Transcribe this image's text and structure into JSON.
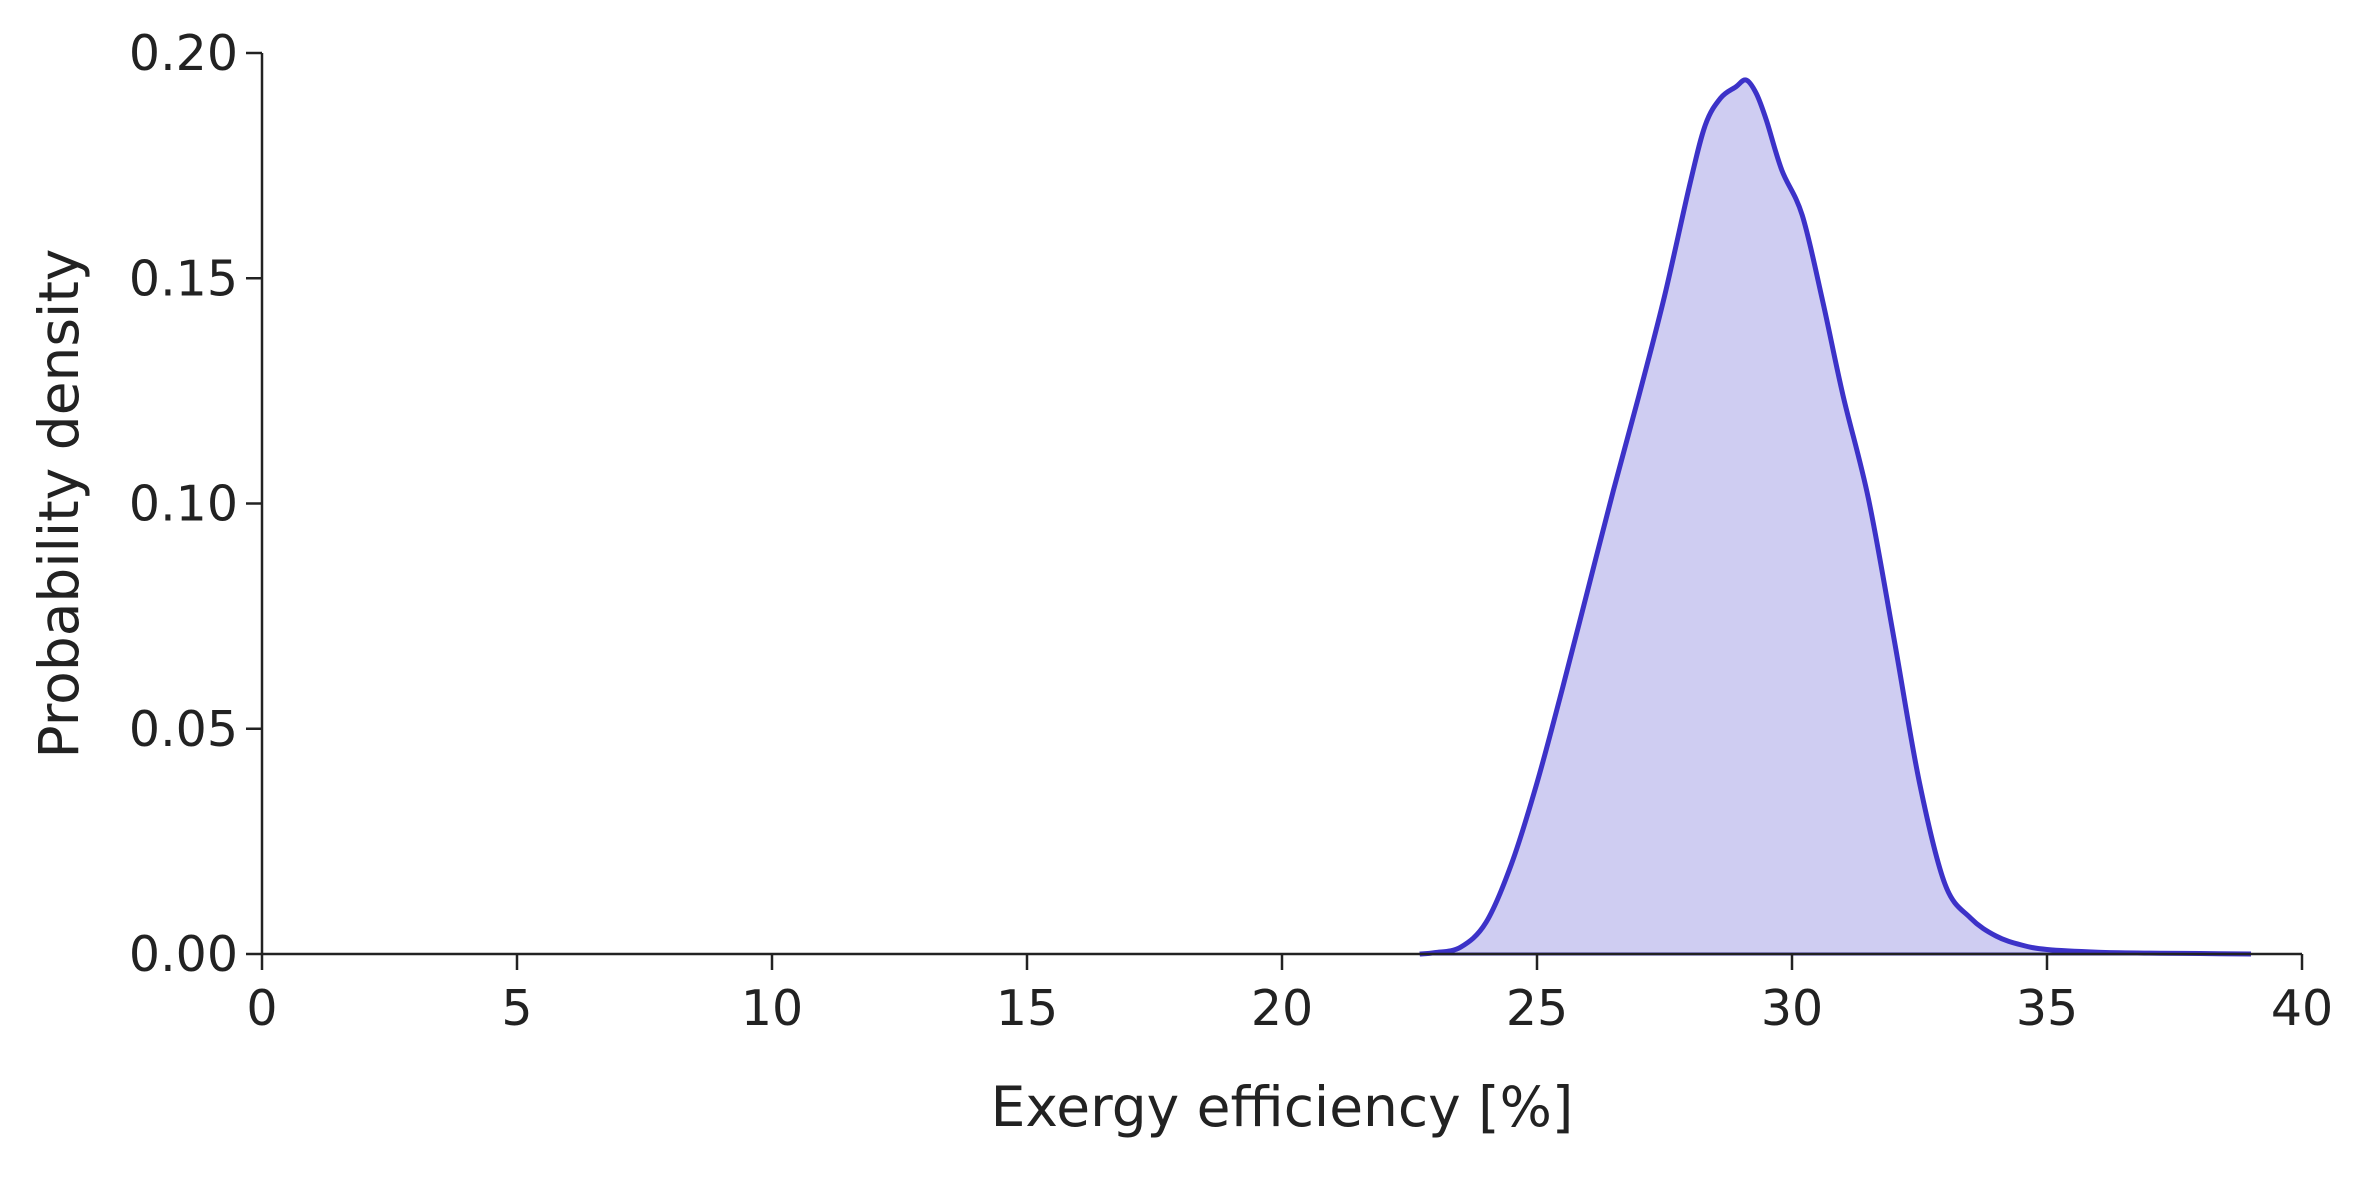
{
  "chart_data": {
    "type": "area",
    "title": "",
    "xlabel": "Exergy efficiency [%]",
    "ylabel": "Probability density",
    "xlim": [
      0,
      40
    ],
    "ylim": [
      0,
      0.2
    ],
    "xticks": [
      0,
      5,
      10,
      15,
      20,
      25,
      30,
      35,
      40
    ],
    "xtick_labels": [
      "0",
      "5",
      "10",
      "15",
      "20",
      "25",
      "30",
      "35",
      "40"
    ],
    "yticks": [
      0,
      0.05,
      0.1,
      0.15,
      0.2
    ],
    "ytick_labels": [
      "0.00",
      "0.05",
      "0.10",
      "0.15",
      "0.20"
    ],
    "grid": false,
    "legend": "none",
    "series": [
      {
        "line_color": "#3c32c8",
        "fill_color": "#cfcdf2",
        "x": [
          22.7,
          23.0,
          23.5,
          24.0,
          24.5,
          25.0,
          25.5,
          26.0,
          26.5,
          27.0,
          27.5,
          28.0,
          28.3,
          28.6,
          28.9,
          29.1,
          29.3,
          29.5,
          29.8,
          30.2,
          30.6,
          31.0,
          31.5,
          32.0,
          32.5,
          33.0,
          33.5,
          34.0,
          34.5,
          35.0,
          36.0,
          37.0,
          38.0,
          39.0
        ],
        "y": [
          0.0,
          0.0003,
          0.0015,
          0.007,
          0.02,
          0.038,
          0.059,
          0.081,
          0.103,
          0.124,
          0.146,
          0.171,
          0.184,
          0.19,
          0.1925,
          0.194,
          0.191,
          0.185,
          0.174,
          0.164,
          0.145,
          0.124,
          0.101,
          0.07,
          0.038,
          0.0155,
          0.008,
          0.004,
          0.002,
          0.001,
          0.0004,
          0.0002,
          0.0001,
          0.0
        ]
      }
    ]
  }
}
